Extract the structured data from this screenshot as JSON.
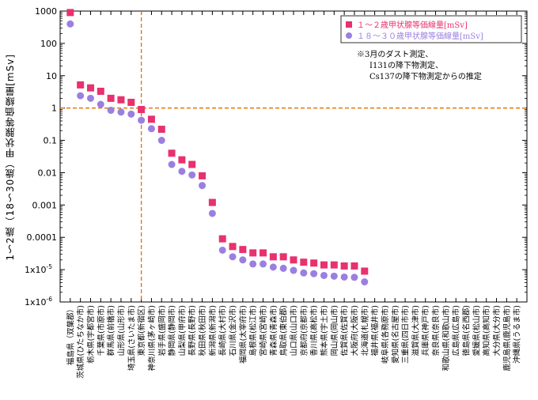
{
  "chart_data": {
    "type": "scatter",
    "ylabel": "1～2歳（18～30歳）甲状腺等価線量[mSv]",
    "yscale": "log",
    "ylim": [
      1e-06,
      1000
    ],
    "yticks": [
      {
        "value": 1000,
        "label": "1000"
      },
      {
        "value": 100,
        "label": "100"
      },
      {
        "value": 10,
        "label": "10"
      },
      {
        "value": 1,
        "label": "1"
      },
      {
        "value": 0.1,
        "label": "0.1"
      },
      {
        "value": 0.01,
        "label": "0.01"
      },
      {
        "value": 0.001,
        "label": "0.001"
      },
      {
        "value": 0.0001,
        "label": "0.0001"
      },
      {
        "value": 1e-05,
        "label": "1x10",
        "sup": "-5"
      },
      {
        "value": 1e-06,
        "label": "1x10",
        "sup": "-6"
      }
    ],
    "categories": [
      "福島県（双葉郡）",
      "茨城県(ひたちなか市)",
      "栃木県(宇都宮市)",
      "千葉県(市原市)",
      "群馬県(前橋市)",
      "山形県(山形市)",
      "埼玉県(さいたま市)",
      "東京都(新宿区)",
      "神奈川県(茅ヶ崎市)",
      "岩手県(盛岡市)",
      "静岡県(静岡市)",
      "山梨県(甲府市)",
      "長野県(長野市)",
      "秋田県(秋田市)",
      "新潟県(新潟市)",
      "長崎県(大村市)",
      "石川県(金沢市)",
      "福岡県(太宰府市)",
      "島根県(松江市)",
      "宮崎県(宮崎市)",
      "青森県(青森市)",
      "鳥取県(東伯郡)",
      "山口県(山口市)",
      "京都府(京都市)",
      "香川県(高松市)",
      "熊本県(宇土市)",
      "岡山県(岡山市)",
      "佐賀県(佐賀市)",
      "大阪府(大阪市)",
      "北海道(札幌市)",
      "福井県(福井市)",
      "岐阜県(各務原市)",
      "愛知県(名古屋市)",
      "三重県(四日市市)",
      "滋賀県(大津市)",
      "兵庫県(神戸市)",
      "奈良県(奈良市)",
      "和歌山県(和歌山市)",
      "広島県(広島市)",
      "徳島県(名西郡)",
      "愛媛県(松山市)",
      "高知県(高知市)",
      "大分県(大分市)",
      "鹿児島県(鹿児島市)",
      "沖縄県(うるま市)"
    ],
    "series": [
      {
        "name": "１～２歳甲状腺等価線量[mSv]",
        "marker": "square",
        "color": "#e8316e",
        "values": [
          900,
          5.2,
          4.2,
          3.3,
          2.0,
          1.8,
          1.5,
          0.9,
          0.45,
          0.22,
          0.04,
          0.025,
          0.018,
          0.008,
          0.0012,
          9e-05,
          5.2e-05,
          4.2e-05,
          3.3e-05,
          3.3e-05,
          2.5e-05,
          2.5e-05,
          2e-05,
          1.7e-05,
          1.6e-05,
          1.4e-05,
          1.4e-05,
          1.3e-05,
          1.3e-05,
          9e-06
        ]
      },
      {
        "name": "１８～３０歳甲状腺等価線量[mSv]",
        "marker": "circle",
        "color": "#9b7fe0",
        "values": [
          400,
          2.4,
          2.0,
          1.3,
          0.85,
          0.75,
          0.65,
          0.42,
          0.23,
          0.1,
          0.018,
          0.011,
          0.0085,
          0.004,
          0.00055,
          4e-05,
          2.5e-05,
          2e-05,
          1.5e-05,
          1.5e-05,
          1.2e-05,
          1.1e-05,
          9.5e-06,
          7.9e-06,
          7.5e-06,
          6.6e-06,
          6.3e-06,
          5.9e-06,
          5.8e-06,
          4.2e-06
        ]
      }
    ],
    "reference_lines": {
      "y": 1,
      "category": "東京都(新宿区)",
      "style": "dashed",
      "color": "#e07000"
    },
    "legend_position": "top-right",
    "annotation": [
      "※3月のダスト測定、",
      "I131の降下物測定、",
      "Cs137の降下物測定からの推定"
    ],
    "grid": false
  }
}
